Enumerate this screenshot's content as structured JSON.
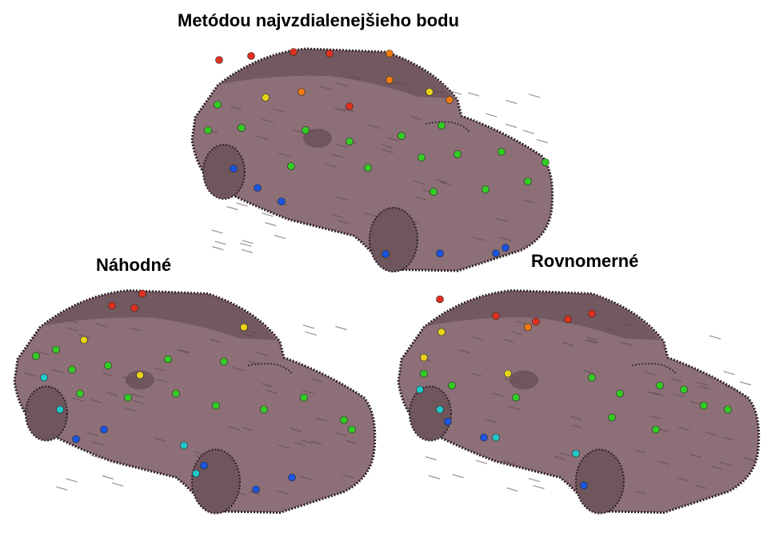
{
  "labels": {
    "top": "Metódou najvzdialenejšieho bodu",
    "left": "Náhodné",
    "right": "Rovnomerné"
  },
  "colors": {
    "body": "#8c6f77",
    "body_dark": "#5c464c",
    "outline": "#2a1f22",
    "wheel": "#6e565c",
    "red": "#e0301e",
    "orange": "#f07a10",
    "yellow": "#e8d21a",
    "green": "#33cc22",
    "cyan": "#22c8c8",
    "blue": "#1a55e0"
  }
}
